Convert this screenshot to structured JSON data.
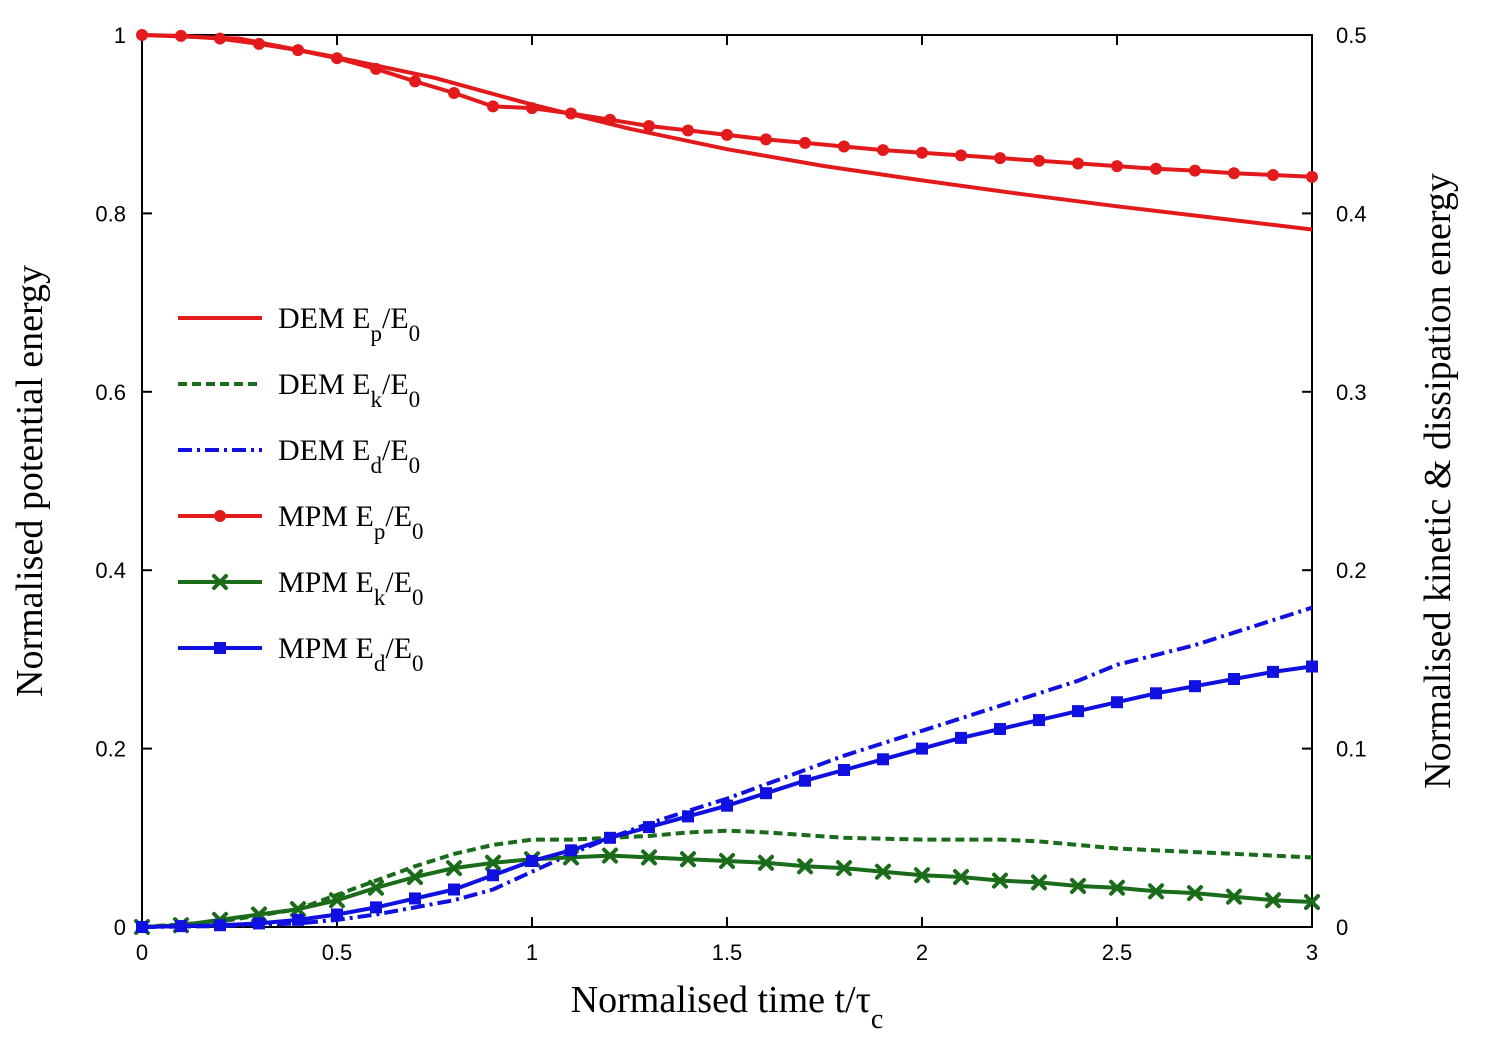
{
  "chart_data": {
    "type": "line",
    "xlabel": "Normalised time t/τc",
    "xlabel_main": "Normalised time t/τ",
    "xlabel_sub": "c",
    "ylabel_left": "Normalised potential energy",
    "ylabel_right": "Normalised kinetic & dissipation energy",
    "xlim": [
      0,
      3
    ],
    "ylim_left": [
      0,
      1
    ],
    "ylim_right": [
      0,
      0.5
    ],
    "x_ticks": [
      "0",
      "0.5",
      "1",
      "1.5",
      "2",
      "2.5",
      "3"
    ],
    "y_ticks_left": [
      "0",
      "0.2",
      "0.4",
      "0.6",
      "0.8",
      "1"
    ],
    "y_ticks_right": [
      "0",
      "0.1",
      "0.2",
      "0.3",
      "0.4",
      "0.5"
    ],
    "legend_position": "left-center",
    "series": [
      {
        "name": "DEM Ep/E0",
        "legend_main": "DEM E",
        "legend_sub": "p",
        "legend_tail": "/E",
        "legend_tail_sub": "0",
        "axis": "left",
        "style": "solid",
        "marker": "none",
        "color": "#e31a1c",
        "x": [
          0,
          0.25,
          0.5,
          0.75,
          1.0,
          1.25,
          1.5,
          1.75,
          2.0,
          2.25,
          2.5,
          2.75,
          3.0
        ],
        "y": [
          1.0,
          0.996,
          0.975,
          0.952,
          0.922,
          0.895,
          0.872,
          0.853,
          0.837,
          0.822,
          0.808,
          0.795,
          0.782
        ]
      },
      {
        "name": "DEM Ek/E0",
        "legend_main": "DEM E",
        "legend_sub": "k",
        "legend_tail": "/E",
        "legend_tail_sub": "0",
        "axis": "right",
        "style": "dashed",
        "marker": "none",
        "color": "#1a6b1a",
        "x": [
          0,
          0.2,
          0.4,
          0.5,
          0.6,
          0.7,
          0.8,
          0.9,
          1.0,
          1.1,
          1.2,
          1.3,
          1.4,
          1.5,
          1.6,
          1.8,
          2.0,
          2.2,
          2.3,
          2.5,
          2.7,
          3.0
        ],
        "y": [
          0,
          0.003,
          0.01,
          0.018,
          0.026,
          0.034,
          0.041,
          0.046,
          0.049,
          0.049,
          0.05,
          0.051,
          0.053,
          0.054,
          0.053,
          0.05,
          0.049,
          0.049,
          0.048,
          0.044,
          0.042,
          0.039
        ]
      },
      {
        "name": "DEM Ed/E0",
        "legend_main": "DEM E",
        "legend_sub": "d",
        "legend_tail": "/E",
        "legend_tail_sub": "0",
        "axis": "right",
        "style": "dashdot",
        "marker": "none",
        "color": "#1010e0",
        "x": [
          0,
          0.2,
          0.4,
          0.5,
          0.6,
          0.7,
          0.8,
          0.9,
          1.0,
          1.1,
          1.2,
          1.3,
          1.4,
          1.5,
          1.6,
          1.8,
          2.0,
          2.2,
          2.4,
          2.5,
          2.7,
          3.0
        ],
        "y": [
          0,
          0.0005,
          0.002,
          0.004,
          0.007,
          0.011,
          0.015,
          0.021,
          0.031,
          0.041,
          0.05,
          0.058,
          0.065,
          0.072,
          0.08,
          0.096,
          0.11,
          0.124,
          0.138,
          0.147,
          0.158,
          0.179
        ]
      },
      {
        "name": "MPM Ep/E0",
        "legend_main": "MPM E",
        "legend_sub": "p",
        "legend_tail": "/E",
        "legend_tail_sub": "0",
        "axis": "left",
        "style": "solid",
        "marker": "circle",
        "color": "#e31a1c",
        "x": [
          0,
          0.1,
          0.2,
          0.3,
          0.4,
          0.5,
          0.6,
          0.7,
          0.8,
          0.9,
          1.0,
          1.1,
          1.2,
          1.3,
          1.4,
          1.5,
          1.6,
          1.7,
          1.8,
          1.9,
          2.0,
          2.1,
          2.2,
          2.3,
          2.4,
          2.5,
          2.6,
          2.7,
          2.8,
          2.9,
          3.0
        ],
        "y": [
          1.0,
          0.999,
          0.996,
          0.99,
          0.983,
          0.974,
          0.962,
          0.948,
          0.935,
          0.92,
          0.918,
          0.912,
          0.905,
          0.898,
          0.893,
          0.888,
          0.883,
          0.879,
          0.875,
          0.871,
          0.868,
          0.865,
          0.862,
          0.859,
          0.856,
          0.853,
          0.85,
          0.848,
          0.845,
          0.843,
          0.841
        ]
      },
      {
        "name": "MPM Ek/E0",
        "legend_main": "MPM E",
        "legend_sub": "k",
        "legend_tail": "/E",
        "legend_tail_sub": "0",
        "axis": "right",
        "style": "solid",
        "marker": "cross",
        "color": "#1a6b1a",
        "x": [
          0,
          0.1,
          0.2,
          0.3,
          0.4,
          0.5,
          0.6,
          0.7,
          0.8,
          0.9,
          1.0,
          1.1,
          1.2,
          1.3,
          1.4,
          1.5,
          1.6,
          1.7,
          1.8,
          1.9,
          2.0,
          2.1,
          2.2,
          2.3,
          2.4,
          2.5,
          2.6,
          2.7,
          2.8,
          2.9,
          3.0
        ],
        "y": [
          0,
          0.001,
          0.004,
          0.007,
          0.01,
          0.015,
          0.022,
          0.028,
          0.033,
          0.036,
          0.038,
          0.039,
          0.04,
          0.039,
          0.038,
          0.037,
          0.036,
          0.034,
          0.033,
          0.031,
          0.029,
          0.028,
          0.026,
          0.025,
          0.023,
          0.022,
          0.02,
          0.019,
          0.017,
          0.015,
          0.014
        ]
      },
      {
        "name": "MPM Ed/E0",
        "legend_main": "MPM E",
        "legend_sub": "d",
        "legend_tail": "/E",
        "legend_tail_sub": "0",
        "axis": "right",
        "style": "solid",
        "marker": "square",
        "color": "#1010e0",
        "x": [
          0,
          0.1,
          0.2,
          0.3,
          0.4,
          0.5,
          0.6,
          0.7,
          0.8,
          0.9,
          1.0,
          1.1,
          1.2,
          1.3,
          1.4,
          1.5,
          1.6,
          1.7,
          1.8,
          1.9,
          2.0,
          2.1,
          2.2,
          2.3,
          2.4,
          2.5,
          2.6,
          2.7,
          2.8,
          2.9,
          3.0
        ],
        "y": [
          0,
          0.0005,
          0.001,
          0.002,
          0.004,
          0.007,
          0.011,
          0.016,
          0.021,
          0.029,
          0.037,
          0.043,
          0.05,
          0.056,
          0.062,
          0.068,
          0.075,
          0.082,
          0.088,
          0.094,
          0.1,
          0.106,
          0.111,
          0.116,
          0.121,
          0.126,
          0.131,
          0.135,
          0.139,
          0.143,
          0.146
        ]
      }
    ]
  }
}
